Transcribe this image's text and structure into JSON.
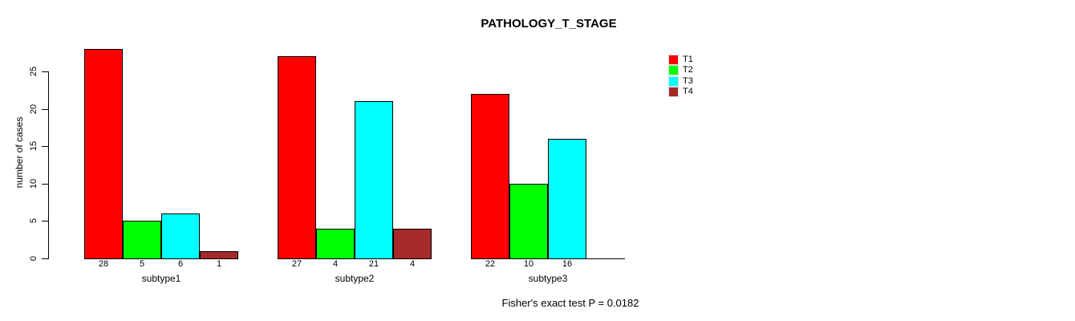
{
  "chart_data": {
    "type": "bar",
    "title": "PATHOLOGY_T_STAGE",
    "xlabel": "",
    "ylabel": "number of cases",
    "categories": [
      "subtype1",
      "subtype2",
      "subtype3"
    ],
    "series": [
      {
        "name": "T1",
        "color": "#FF0000",
        "values": [
          28,
          27,
          22
        ]
      },
      {
        "name": "T2",
        "color": "#00FF00",
        "values": [
          5,
          4,
          10
        ]
      },
      {
        "name": "T3",
        "color": "#00FFFF",
        "values": [
          6,
          21,
          16
        ]
      },
      {
        "name": "T4",
        "color": "#A52A2A",
        "values": [
          1,
          4,
          0
        ]
      }
    ],
    "yticks": [
      0,
      5,
      10,
      15,
      20,
      25
    ],
    "ylim": [
      0,
      28
    ],
    "grid": false,
    "legend_position": "right",
    "bar_value_labels": true,
    "annotation": "Fisher's exact test P = 0.0182"
  }
}
